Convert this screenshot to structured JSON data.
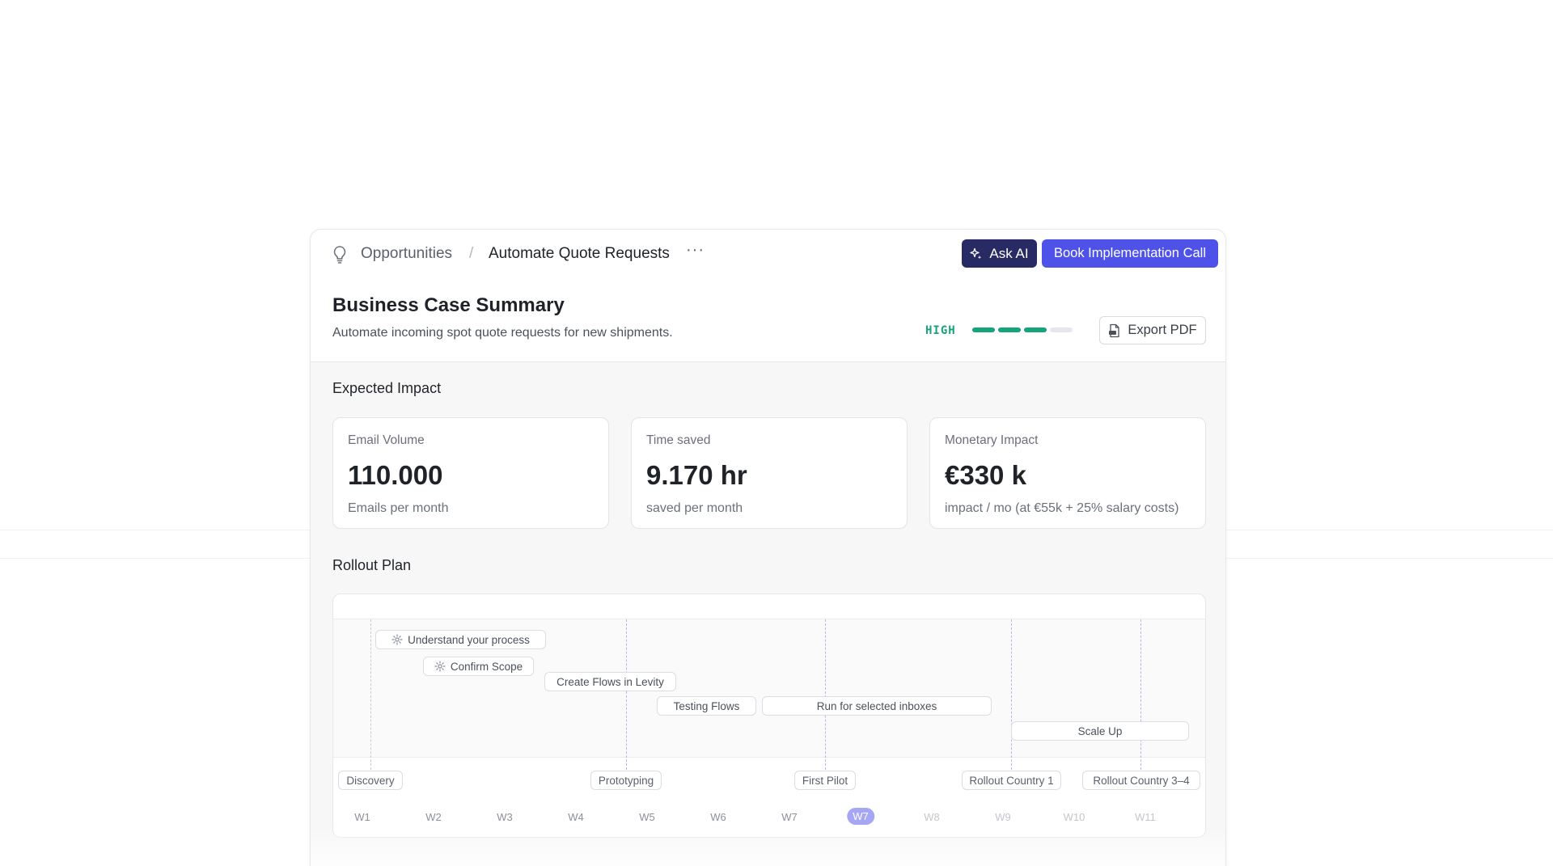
{
  "breadcrumb": {
    "parent": "Opportunities",
    "separator": "/",
    "current": "Automate Quote Requests",
    "more": "···"
  },
  "actions": {
    "ask_ai": "Ask AI",
    "book_call": "Book Implementation Call",
    "export_pdf": "Export PDF"
  },
  "summary": {
    "title": "Business Case Summary",
    "description": "Automate incoming spot quote requests for new shipments.",
    "priority_label": "HIGH",
    "priority_level": 3,
    "priority_max": 4
  },
  "impact": {
    "title": "Expected Impact",
    "metrics": [
      {
        "label": "Email Volume",
        "value": "110.000",
        "sub": "Emails per month"
      },
      {
        "label": "Time saved",
        "value": "9.170 hr",
        "sub": "saved per month"
      },
      {
        "label": "Monetary Impact",
        "value": "€330 k",
        "sub": "impact / mo (at €55k + 25% salary costs)"
      }
    ]
  },
  "rollout": {
    "title": "Rollout Plan",
    "tasks": [
      "Understand your process",
      "Confirm Scope",
      "Create Flows in Levity",
      "Testing Flows",
      "Run for selected inboxes",
      "Scale Up"
    ],
    "milestones": [
      "Discovery",
      "Prototyping",
      "First Pilot",
      "Rollout Country 1",
      "Rollout Country 3–4"
    ],
    "weeks": [
      "W1",
      "W2",
      "W3",
      "W4",
      "W5",
      "W6",
      "W7",
      "W8",
      "W9",
      "W10",
      "W11"
    ],
    "current_week": "W7"
  },
  "colors": {
    "primary": "#4f52e8",
    "ask_ai_bg": "#272a63",
    "priority_green": "#14a37a",
    "current_week": "#a6a7f4"
  }
}
